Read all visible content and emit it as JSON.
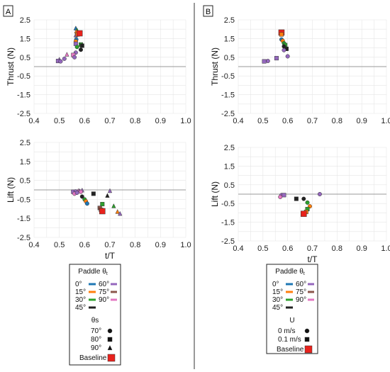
{
  "figure": {
    "panels": [
      {
        "tag": "A",
        "x_label": "t/T"
      },
      {
        "tag": "B",
        "x_label": "t/T"
      }
    ]
  },
  "colors": {
    "0": "#1f77b4",
    "15": "#ff7f0e",
    "30": "#2ca02c",
    "45": "#222222",
    "60": "#9467bd",
    "75": "#8c564b",
    "90": "#e377c2",
    "baseline": "#e8221c",
    "zero_line": "#999999",
    "grid": "#e6e6e6"
  },
  "legends": [
    {
      "title": "Paddle θ",
      "title_sub": "t",
      "paddle_rows": [
        {
          "left": "0°",
          "left_key": "0",
          "right": "60°",
          "right_key": "60"
        },
        {
          "left": "15°",
          "left_key": "15",
          "right": "75°",
          "right_key": "75"
        },
        {
          "left": "30°",
          "left_key": "30",
          "right": "90°",
          "right_key": "90"
        },
        {
          "left": "45°",
          "left_key": "45",
          "right": "",
          "right_key": ""
        }
      ],
      "marker_title": "θs",
      "marker_rows": [
        {
          "label": "70°",
          "marker": "circle"
        },
        {
          "label": "80°",
          "marker": "square"
        },
        {
          "label": "90°",
          "marker": "triangle"
        }
      ],
      "baseline_label": "Baseline"
    },
    {
      "title": "Paddle θ",
      "title_sub": "t",
      "paddle_rows": [
        {
          "left": "0°",
          "left_key": "0",
          "right": "60°",
          "right_key": "60"
        },
        {
          "left": "15°",
          "left_key": "15",
          "right": "75°",
          "right_key": "75"
        },
        {
          "left": "30°",
          "left_key": "30",
          "right": "90°",
          "right_key": "90"
        },
        {
          "left": "45°",
          "left_key": "45",
          "right": "",
          "right_key": ""
        }
      ],
      "marker_title": "U",
      "marker_rows": [
        {
          "label": "0 m/s",
          "marker": "circle"
        },
        {
          "label": "0.1 m/s",
          "marker": "square"
        }
      ],
      "baseline_label": "Baseline"
    }
  ],
  "chart_data": [
    {
      "id": "A-thrust",
      "type": "scatter",
      "panel": "A",
      "ylabel": "Thrust (N)",
      "xlabel": "",
      "xlim": [
        0.4,
        1.0
      ],
      "ylim": [
        -2.5,
        2.5
      ],
      "xticks": [
        "0.4",
        "0.5",
        "0.6",
        "0.7",
        "0.8",
        "0.9",
        "1.0"
      ],
      "yticks": [
        "2.5",
        "1.5",
        "0.5",
        "-0.5",
        "-1.5",
        "-2.5"
      ],
      "ytick_values": [
        2.5,
        1.5,
        0.5,
        -0.5,
        -1.5,
        -2.5
      ],
      "reference_y": 0,
      "points": [
        {
          "x": 0.565,
          "y": 2.05,
          "c": "0",
          "m": "triangle"
        },
        {
          "x": 0.57,
          "y": 1.95,
          "c": "30",
          "m": "triangle"
        },
        {
          "x": 0.567,
          "y": 1.88,
          "c": "15",
          "m": "triangle"
        },
        {
          "x": 0.575,
          "y": 1.75,
          "c": "45",
          "m": "triangle"
        },
        {
          "x": 0.565,
          "y": 1.68,
          "c": "60",
          "m": "triangle"
        },
        {
          "x": 0.572,
          "y": 1.72,
          "c": "15",
          "m": "square"
        },
        {
          "x": 0.58,
          "y": 1.78,
          "c": "baseline",
          "m": "square",
          "big": true
        },
        {
          "x": 0.567,
          "y": 1.45,
          "c": "0",
          "m": "circle"
        },
        {
          "x": 0.565,
          "y": 1.35,
          "c": "15",
          "m": "circle"
        },
        {
          "x": 0.565,
          "y": 1.22,
          "c": "60",
          "m": "square"
        },
        {
          "x": 0.585,
          "y": 1.18,
          "c": "30",
          "m": "square"
        },
        {
          "x": 0.59,
          "y": 1.12,
          "c": "45",
          "m": "square"
        },
        {
          "x": 0.57,
          "y": 1.05,
          "c": "30",
          "m": "circle"
        },
        {
          "x": 0.585,
          "y": 0.9,
          "c": "45",
          "m": "circle"
        },
        {
          "x": 0.565,
          "y": 0.75,
          "c": "60",
          "m": "circle"
        },
        {
          "x": 0.555,
          "y": 0.62,
          "c": "90",
          "m": "square"
        },
        {
          "x": 0.56,
          "y": 0.5,
          "c": "60",
          "m": "circle"
        },
        {
          "x": 0.53,
          "y": 0.65,
          "c": "90",
          "m": "triangle"
        },
        {
          "x": 0.52,
          "y": 0.42,
          "c": "60",
          "m": "circle"
        },
        {
          "x": 0.5,
          "y": 0.38,
          "c": "60",
          "m": "triangle"
        },
        {
          "x": 0.495,
          "y": 0.3,
          "c": "60",
          "m": "square"
        },
        {
          "x": 0.505,
          "y": 0.28,
          "c": "60",
          "m": "circle"
        }
      ]
    },
    {
      "id": "A-lift",
      "type": "scatter",
      "panel": "A",
      "ylabel": "Lift (N)",
      "xlabel": "t/T",
      "xlim": [
        0.4,
        1.0
      ],
      "ylim": [
        -2.5,
        2.5
      ],
      "xticks": [
        "0.4",
        "0.5",
        "0.6",
        "0.7",
        "0.8",
        "0.9",
        "1.0"
      ],
      "yticks": [
        "2.5",
        "1.5",
        "0.5",
        "-0.5",
        "-1.5",
        "-2.5"
      ],
      "ytick_values": [
        2.5,
        1.5,
        0.5,
        -0.5,
        -1.5,
        -2.5
      ],
      "reference_y": 0,
      "points": [
        {
          "x": 0.555,
          "y": -0.1,
          "c": "60",
          "m": "square"
        },
        {
          "x": 0.565,
          "y": -0.08,
          "c": "60",
          "m": "circle"
        },
        {
          "x": 0.575,
          "y": -0.05,
          "c": "90",
          "m": "triangle"
        },
        {
          "x": 0.58,
          "y": -0.05,
          "c": "60",
          "m": "triangle"
        },
        {
          "x": 0.59,
          "y": -0.02,
          "c": "60",
          "m": "triangle"
        },
        {
          "x": 0.56,
          "y": -0.2,
          "c": "90",
          "m": "circle"
        },
        {
          "x": 0.57,
          "y": -0.15,
          "c": "60",
          "m": "circle"
        },
        {
          "x": 0.585,
          "y": -0.1,
          "c": "90",
          "m": "circle"
        },
        {
          "x": 0.59,
          "y": -0.35,
          "c": "45",
          "m": "circle"
        },
        {
          "x": 0.6,
          "y": -0.5,
          "c": "30",
          "m": "circle"
        },
        {
          "x": 0.605,
          "y": -0.6,
          "c": "15",
          "m": "circle"
        },
        {
          "x": 0.61,
          "y": -0.72,
          "c": "0",
          "m": "circle"
        },
        {
          "x": 0.635,
          "y": -0.2,
          "c": "45",
          "m": "square"
        },
        {
          "x": 0.66,
          "y": -0.95,
          "c": "75",
          "m": "square"
        },
        {
          "x": 0.67,
          "y": -0.75,
          "c": "30",
          "m": "square"
        },
        {
          "x": 0.665,
          "y": -1.05,
          "c": "15",
          "m": "square"
        },
        {
          "x": 0.67,
          "y": -1.12,
          "c": "baseline",
          "m": "square",
          "big": true
        },
        {
          "x": 0.69,
          "y": -0.3,
          "c": "45",
          "m": "triangle"
        },
        {
          "x": 0.7,
          "y": -0.05,
          "c": "60",
          "m": "triangle"
        },
        {
          "x": 0.715,
          "y": -0.85,
          "c": "30",
          "m": "triangle"
        },
        {
          "x": 0.73,
          "y": -1.15,
          "c": "15",
          "m": "triangle"
        },
        {
          "x": 0.74,
          "y": -1.25,
          "c": "60",
          "m": "triangle"
        }
      ]
    },
    {
      "id": "B-thrust",
      "type": "scatter",
      "panel": "B",
      "ylabel": "Thrust (N)",
      "xlabel": "",
      "xlim": [
        0.4,
        1.0
      ],
      "ylim": [
        -2.5,
        2.5
      ],
      "xticks": [
        "0.4",
        "0.5",
        "0.6",
        "0.7",
        "0.8",
        "0.9",
        "1.0"
      ],
      "yticks": [
        "2.5",
        "1.5",
        "0.5",
        "-0.5",
        "-1.5",
        "-2.5"
      ],
      "ytick_values": [
        2.5,
        1.5,
        0.5,
        -0.5,
        -1.5,
        -2.5
      ],
      "reference_y": 0,
      "points": [
        {
          "x": 0.575,
          "y": 1.82,
          "c": "baseline",
          "m": "square",
          "big": true
        },
        {
          "x": 0.575,
          "y": 1.72,
          "c": "15",
          "m": "square"
        },
        {
          "x": 0.575,
          "y": 1.45,
          "c": "0",
          "m": "circle"
        },
        {
          "x": 0.58,
          "y": 1.38,
          "c": "15",
          "m": "circle"
        },
        {
          "x": 0.585,
          "y": 1.25,
          "c": "30",
          "m": "circle"
        },
        {
          "x": 0.59,
          "y": 1.15,
          "c": "30",
          "m": "square"
        },
        {
          "x": 0.585,
          "y": 1.08,
          "c": "45",
          "m": "circle"
        },
        {
          "x": 0.595,
          "y": 0.95,
          "c": "45",
          "m": "square"
        },
        {
          "x": 0.585,
          "y": 0.88,
          "c": "60",
          "m": "circle"
        },
        {
          "x": 0.6,
          "y": 0.55,
          "c": "60",
          "m": "circle"
        },
        {
          "x": 0.555,
          "y": 0.45,
          "c": "60",
          "m": "square"
        },
        {
          "x": 0.52,
          "y": 0.3,
          "c": "60",
          "m": "circle"
        },
        {
          "x": 0.505,
          "y": 0.28,
          "c": "60",
          "m": "square"
        }
      ]
    },
    {
      "id": "B-lift",
      "type": "scatter",
      "panel": "B",
      "ylabel": "Lift (N)",
      "xlabel": "t/T",
      "xlim": [
        0.4,
        1.0
      ],
      "ylim": [
        -2.5,
        2.5
      ],
      "xticks": [
        "0.4",
        "0.5",
        "0.6",
        "0.7",
        "0.8",
        "0.9",
        "1.0"
      ],
      "yticks": [
        "2.5",
        "1.5",
        "0.5",
        "-0.5",
        "-1.5",
        "-2.5"
      ],
      "ytick_values": [
        2.5,
        1.5,
        0.5,
        -0.5,
        -1.5,
        -2.5
      ],
      "reference_y": 0,
      "points": [
        {
          "x": 0.575,
          "y": -0.05,
          "c": "60",
          "m": "circle"
        },
        {
          "x": 0.585,
          "y": -0.05,
          "c": "60",
          "m": "square"
        },
        {
          "x": 0.57,
          "y": -0.15,
          "c": "90",
          "m": "circle"
        },
        {
          "x": 0.635,
          "y": -0.25,
          "c": "45",
          "m": "square"
        },
        {
          "x": 0.665,
          "y": -0.25,
          "c": "45",
          "m": "circle"
        },
        {
          "x": 0.68,
          "y": -0.45,
          "c": "30",
          "m": "circle"
        },
        {
          "x": 0.69,
          "y": -0.65,
          "c": "15",
          "m": "circle"
        },
        {
          "x": 0.68,
          "y": -0.8,
          "c": "30",
          "m": "square"
        },
        {
          "x": 0.675,
          "y": -0.95,
          "c": "15",
          "m": "square"
        },
        {
          "x": 0.665,
          "y": -1.05,
          "c": "baseline",
          "m": "square",
          "big": true
        },
        {
          "x": 0.73,
          "y": 0.0,
          "c": "60",
          "m": "circle"
        }
      ]
    }
  ]
}
